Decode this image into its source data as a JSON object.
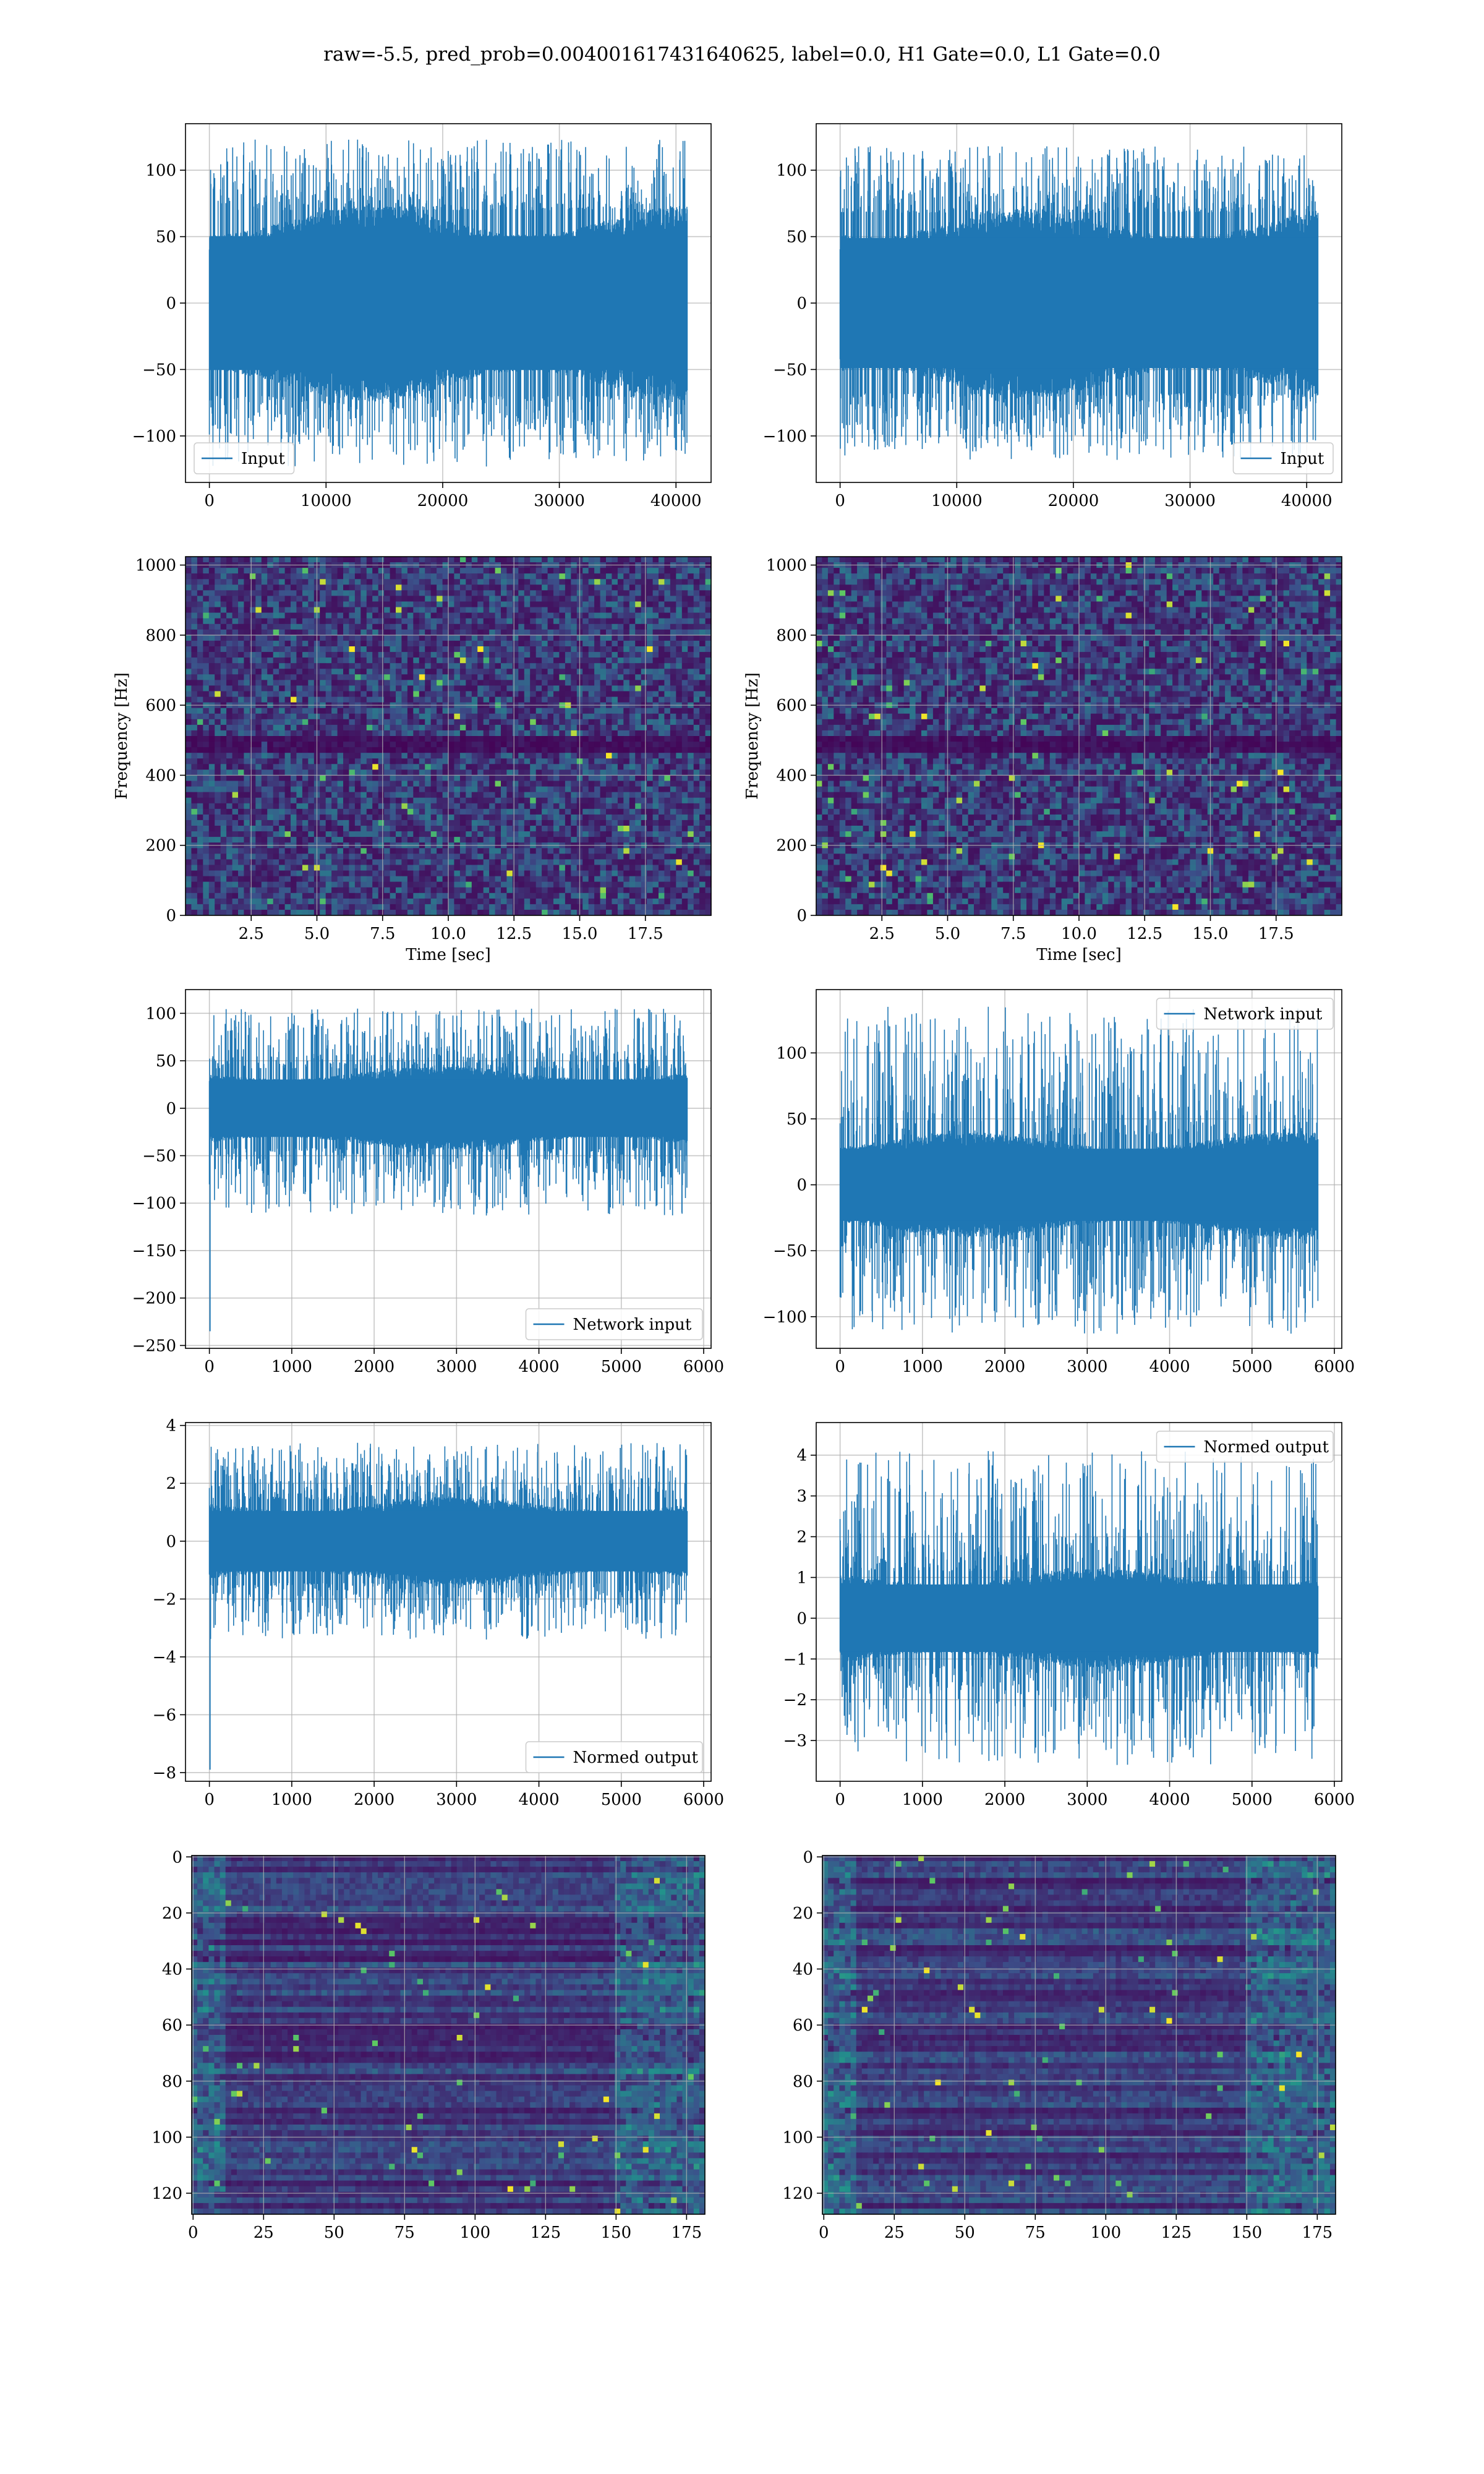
{
  "figure": {
    "suptitle": "raw=-5.5, pred_prob=0.004001617431640625, label=0.0, H1 Gate=0.0, L1 Gate=0.0",
    "line_color": "#1f77b4",
    "grid_color": "#b0b0b0"
  },
  "chart_data": [
    {
      "id": "h1_input",
      "type": "line",
      "series": [
        {
          "name": "Input",
          "summary": "dense noise, mostly within -75..75, spikes to ~123 and ~-123"
        }
      ],
      "x": [
        0,
        40960
      ],
      "xlim": [
        -2048,
        43008
      ],
      "ylim": [
        -135,
        135
      ],
      "xticks": [
        0,
        10000,
        20000,
        30000,
        40000
      ],
      "yticks": [
        -100,
        -50,
        0,
        50,
        100
      ],
      "xlabel": "",
      "ylabel": "",
      "legend": "lower-left",
      "grid": true,
      "core_amp": 70,
      "spike_max": 123,
      "spike_min": -123,
      "seed": 11
    },
    {
      "id": "l1_input",
      "type": "line",
      "series": [
        {
          "name": "Input",
          "summary": "dense noise, mostly within -75..75, spikes to ~118 and ~-118"
        }
      ],
      "x": [
        0,
        40960
      ],
      "xlim": [
        -2048,
        43008
      ],
      "ylim": [
        -135,
        135
      ],
      "xticks": [
        0,
        10000,
        20000,
        30000,
        40000
      ],
      "yticks": [
        -100,
        -50,
        0,
        50,
        100
      ],
      "xlabel": "",
      "ylabel": "",
      "legend": "lower-right",
      "grid": true,
      "core_amp": 68,
      "spike_max": 118,
      "spike_min": -118,
      "seed": 23
    },
    {
      "id": "h1_spectrogram",
      "type": "heatmap",
      "xlim": [
        0,
        20
      ],
      "ylim": [
        0,
        1024
      ],
      "xticks": [
        2.5,
        5.0,
        7.5,
        10.0,
        12.5,
        15.0,
        17.5
      ],
      "yticks": [
        0,
        200,
        400,
        600,
        800,
        1000
      ],
      "xlabel": "Time [sec]",
      "ylabel": "Frequency [Hz]",
      "grid": true,
      "colormap": "viridis",
      "dark_band_hz": [
        470,
        510
      ],
      "seed": 31
    },
    {
      "id": "l1_spectrogram",
      "type": "heatmap",
      "xlim": [
        0,
        20
      ],
      "ylim": [
        0,
        1024
      ],
      "xticks": [
        2.5,
        5.0,
        7.5,
        10.0,
        12.5,
        15.0,
        17.5
      ],
      "yticks": [
        0,
        200,
        400,
        600,
        800,
        1000
      ],
      "xlabel": "Time [sec]",
      "ylabel": "Frequency [Hz]",
      "grid": true,
      "colormap": "viridis",
      "dark_band_hz": [
        470,
        510
      ],
      "seed": 37
    },
    {
      "id": "h1_network_input",
      "type": "line",
      "series": [
        {
          "name": "Network input",
          "summary": "noise within ~-60..60 with spikes to ~105, initial drop to ~-235 at x=0"
        }
      ],
      "x": [
        0,
        5800
      ],
      "xlim": [
        -290,
        6090
      ],
      "ylim": [
        -253,
        125
      ],
      "xticks": [
        0,
        1000,
        2000,
        3000,
        4000,
        5000,
        6000
      ],
      "yticks": [
        -250,
        -200,
        -150,
        -100,
        -50,
        0,
        50,
        100
      ],
      "xlabel": "",
      "ylabel": "",
      "legend": "lower-right",
      "grid": true,
      "core_amp": 42,
      "spike_max": 105,
      "spike_min": -113,
      "initial": -235,
      "seed": 41
    },
    {
      "id": "l1_network_input",
      "type": "line",
      "series": [
        {
          "name": "Network input",
          "summary": "noise within ~-40..40 with spikes to ~135 and ~-113"
        }
      ],
      "x": [
        0,
        5800
      ],
      "xlim": [
        -290,
        6090
      ],
      "ylim": [
        -124,
        148
      ],
      "xticks": [
        0,
        1000,
        2000,
        3000,
        4000,
        5000,
        6000
      ],
      "yticks": [
        -100,
        -50,
        0,
        50,
        100
      ],
      "xlabel": "",
      "ylabel": "",
      "legend": "upper-right",
      "grid": true,
      "core_amp": 38,
      "spike_max": 135,
      "spike_min": -113,
      "seed": 43
    },
    {
      "id": "h1_normed_output",
      "type": "line",
      "series": [
        {
          "name": "Normed output",
          "summary": "noise within ~-1.5..1.5 with spikes to ~3.4, initial drop to ~-7.9 at x=0"
        }
      ],
      "x": [
        0,
        5800
      ],
      "xlim": [
        -290,
        6090
      ],
      "ylim": [
        -8.3,
        4.1
      ],
      "xticks": [
        0,
        1000,
        2000,
        3000,
        4000,
        5000,
        6000
      ],
      "yticks": [
        -8,
        -6,
        -4,
        -2,
        0,
        2,
        4
      ],
      "xlabel": "",
      "ylabel": "",
      "legend": "lower-right",
      "grid": true,
      "core_amp": 1.45,
      "spike_max": 3.4,
      "spike_min": -3.4,
      "initial": -7.9,
      "seed": 47
    },
    {
      "id": "l1_normed_output",
      "type": "line",
      "series": [
        {
          "name": "Normed output",
          "summary": "noise within ~-1.2..1.2 with spikes to ~4.1 and ~-3.6"
        }
      ],
      "x": [
        0,
        5800
      ],
      "xlim": [
        -290,
        6090
      ],
      "ylim": [
        -4.0,
        4.8
      ],
      "xticks": [
        0,
        1000,
        2000,
        3000,
        4000,
        5000,
        6000
      ],
      "yticks": [
        -3,
        -2,
        -1,
        0,
        1,
        2,
        3,
        4
      ],
      "xlabel": "",
      "ylabel": "",
      "legend": "upper-right",
      "grid": true,
      "core_amp": 1.15,
      "spike_max": 4.1,
      "spike_min": -3.6,
      "seed": 53
    },
    {
      "id": "h1_features",
      "type": "heatmap",
      "xlim": [
        -0.5,
        181.5
      ],
      "ylim": [
        127.5,
        -0.5
      ],
      "xticks": [
        0,
        25,
        50,
        75,
        100,
        125,
        150,
        175
      ],
      "yticks": [
        0,
        20,
        40,
        60,
        80,
        100,
        120
      ],
      "xlabel": "",
      "ylabel": "",
      "grid": true,
      "colormap": "viridis",
      "seed": 59
    },
    {
      "id": "l1_features",
      "type": "heatmap",
      "xlim": [
        -0.5,
        181.5
      ],
      "ylim": [
        127.5,
        -0.5
      ],
      "xticks": [
        0,
        25,
        50,
        75,
        100,
        125,
        150,
        175
      ],
      "yticks": [
        0,
        20,
        40,
        60,
        80,
        100,
        120
      ],
      "xlabel": "",
      "ylabel": "",
      "grid": true,
      "colormap": "viridis",
      "seed": 61
    }
  ]
}
